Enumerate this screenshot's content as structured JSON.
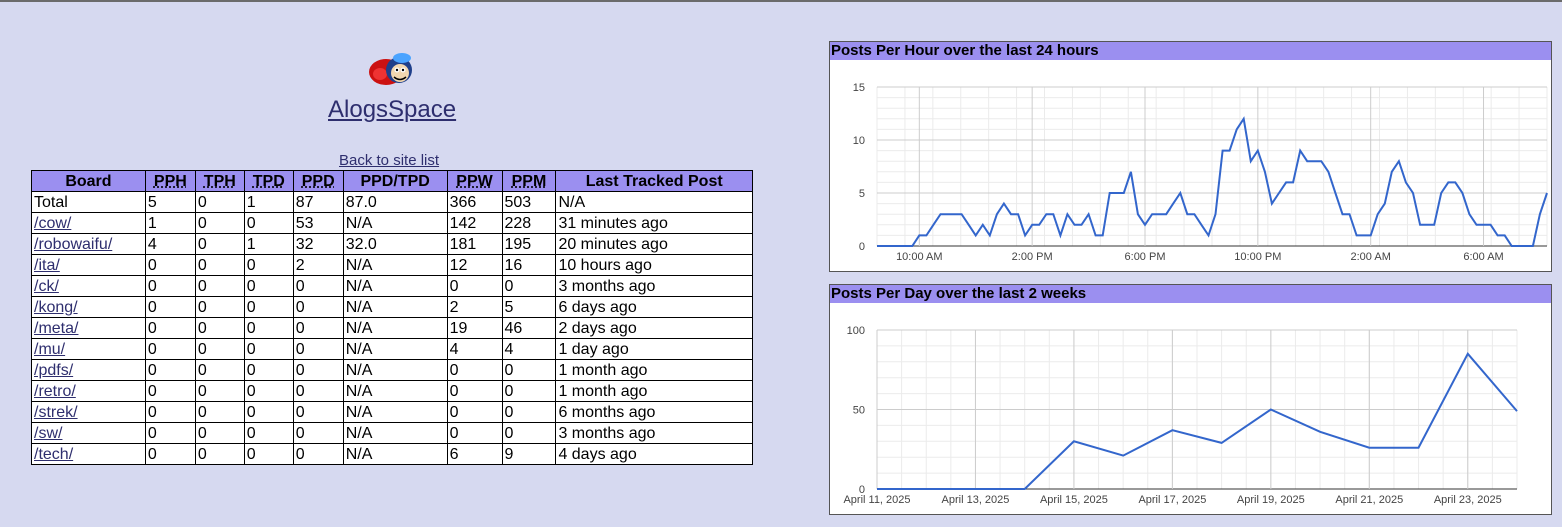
{
  "site": {
    "name": "AlogsSpace",
    "back_link": "Back to site list"
  },
  "icons": {
    "logo": "mascot-logo-icon"
  },
  "colors": {
    "header_bg": "#9b8ff0",
    "page_bg": "#d6d9f0",
    "line": "#3366cc"
  },
  "table": {
    "headers": [
      "Board",
      "PPH",
      "TPH",
      "TPD",
      "PPD",
      "PPD/TPD",
      "PPW",
      "PPM",
      "Last Tracked Post"
    ],
    "rows": [
      [
        "Total",
        "5",
        "0",
        "1",
        "87",
        "87.0",
        "366",
        "503",
        "N/A"
      ],
      [
        "/cow/",
        "1",
        "0",
        "0",
        "53",
        "N/A",
        "142",
        "228",
        "31 minutes ago"
      ],
      [
        "/robowaifu/",
        "4",
        "0",
        "1",
        "32",
        "32.0",
        "181",
        "195",
        "20 minutes ago"
      ],
      [
        "/ita/",
        "0",
        "0",
        "0",
        "2",
        "N/A",
        "12",
        "16",
        "10 hours ago"
      ],
      [
        "/ck/",
        "0",
        "0",
        "0",
        "0",
        "N/A",
        "0",
        "0",
        "3 months ago"
      ],
      [
        "/kong/",
        "0",
        "0",
        "0",
        "0",
        "N/A",
        "2",
        "5",
        "6 days ago"
      ],
      [
        "/meta/",
        "0",
        "0",
        "0",
        "0",
        "N/A",
        "19",
        "46",
        "2 days ago"
      ],
      [
        "/mu/",
        "0",
        "0",
        "0",
        "0",
        "N/A",
        "4",
        "4",
        "1 day ago"
      ],
      [
        "/pdfs/",
        "0",
        "0",
        "0",
        "0",
        "N/A",
        "0",
        "0",
        "1 month ago"
      ],
      [
        "/retro/",
        "0",
        "0",
        "0",
        "0",
        "N/A",
        "0",
        "0",
        "1 month ago"
      ],
      [
        "/strek/",
        "0",
        "0",
        "0",
        "0",
        "N/A",
        "0",
        "0",
        "6 months ago"
      ],
      [
        "/sw/",
        "0",
        "0",
        "0",
        "0",
        "N/A",
        "0",
        "0",
        "3 months ago"
      ],
      [
        "/tech/",
        "0",
        "0",
        "0",
        "0",
        "N/A",
        "6",
        "9",
        "4 days ago"
      ]
    ]
  },
  "chart_data": [
    {
      "type": "line",
      "title": "Posts Per Hour over the last 24 hours",
      "ylim": [
        0,
        15
      ],
      "yticks": [
        0,
        5,
        10,
        15
      ],
      "xticks": [
        "10:00 AM",
        "2:00 PM",
        "6:00 PM",
        "10:00 PM",
        "2:00 AM",
        "6:00 AM"
      ],
      "grid": true,
      "values": [
        0,
        0,
        0,
        0,
        0,
        0,
        1,
        1,
        2,
        3,
        3,
        3,
        3,
        2,
        1,
        2,
        1,
        3,
        4,
        3,
        3,
        1,
        2,
        2,
        3,
        3,
        1,
        3,
        2,
        2,
        3,
        1,
        1,
        5,
        5,
        5,
        7,
        3,
        2,
        3,
        3,
        3,
        4,
        5,
        3,
        3,
        2,
        1,
        3,
        9,
        9,
        11,
        12,
        8,
        9,
        7,
        4,
        5,
        6,
        6,
        9,
        8,
        8,
        8,
        7,
        5,
        3,
        3,
        1,
        1,
        1,
        3,
        4,
        7,
        8,
        6,
        5,
        2,
        2,
        2,
        5,
        6,
        6,
        5,
        3,
        2,
        2,
        2,
        1,
        1,
        0,
        0,
        0,
        0,
        3,
        5
      ]
    },
    {
      "type": "line",
      "title": "Posts Per Day over the last 2 weeks",
      "ylim": [
        0,
        100
      ],
      "yticks": [
        0,
        50,
        100
      ],
      "x": [
        "April 11, 2025",
        "April 12, 2025",
        "April 13, 2025",
        "April 14, 2025",
        "April 15, 2025",
        "April 16, 2025",
        "April 17, 2025",
        "April 18, 2025",
        "April 19, 2025",
        "April 20, 2025",
        "April 21, 2025",
        "April 22, 2025",
        "April 23, 2025",
        "April 24, 2025"
      ],
      "xticks": [
        "April 11, 2025",
        "April 13, 2025",
        "April 15, 2025",
        "April 17, 2025",
        "April 19, 2025",
        "April 21, 2025",
        "April 23, 2025"
      ],
      "grid": true,
      "values": [
        0,
        0,
        0,
        0,
        30,
        21,
        37,
        29,
        50,
        36,
        26,
        26,
        85,
        49
      ]
    }
  ]
}
